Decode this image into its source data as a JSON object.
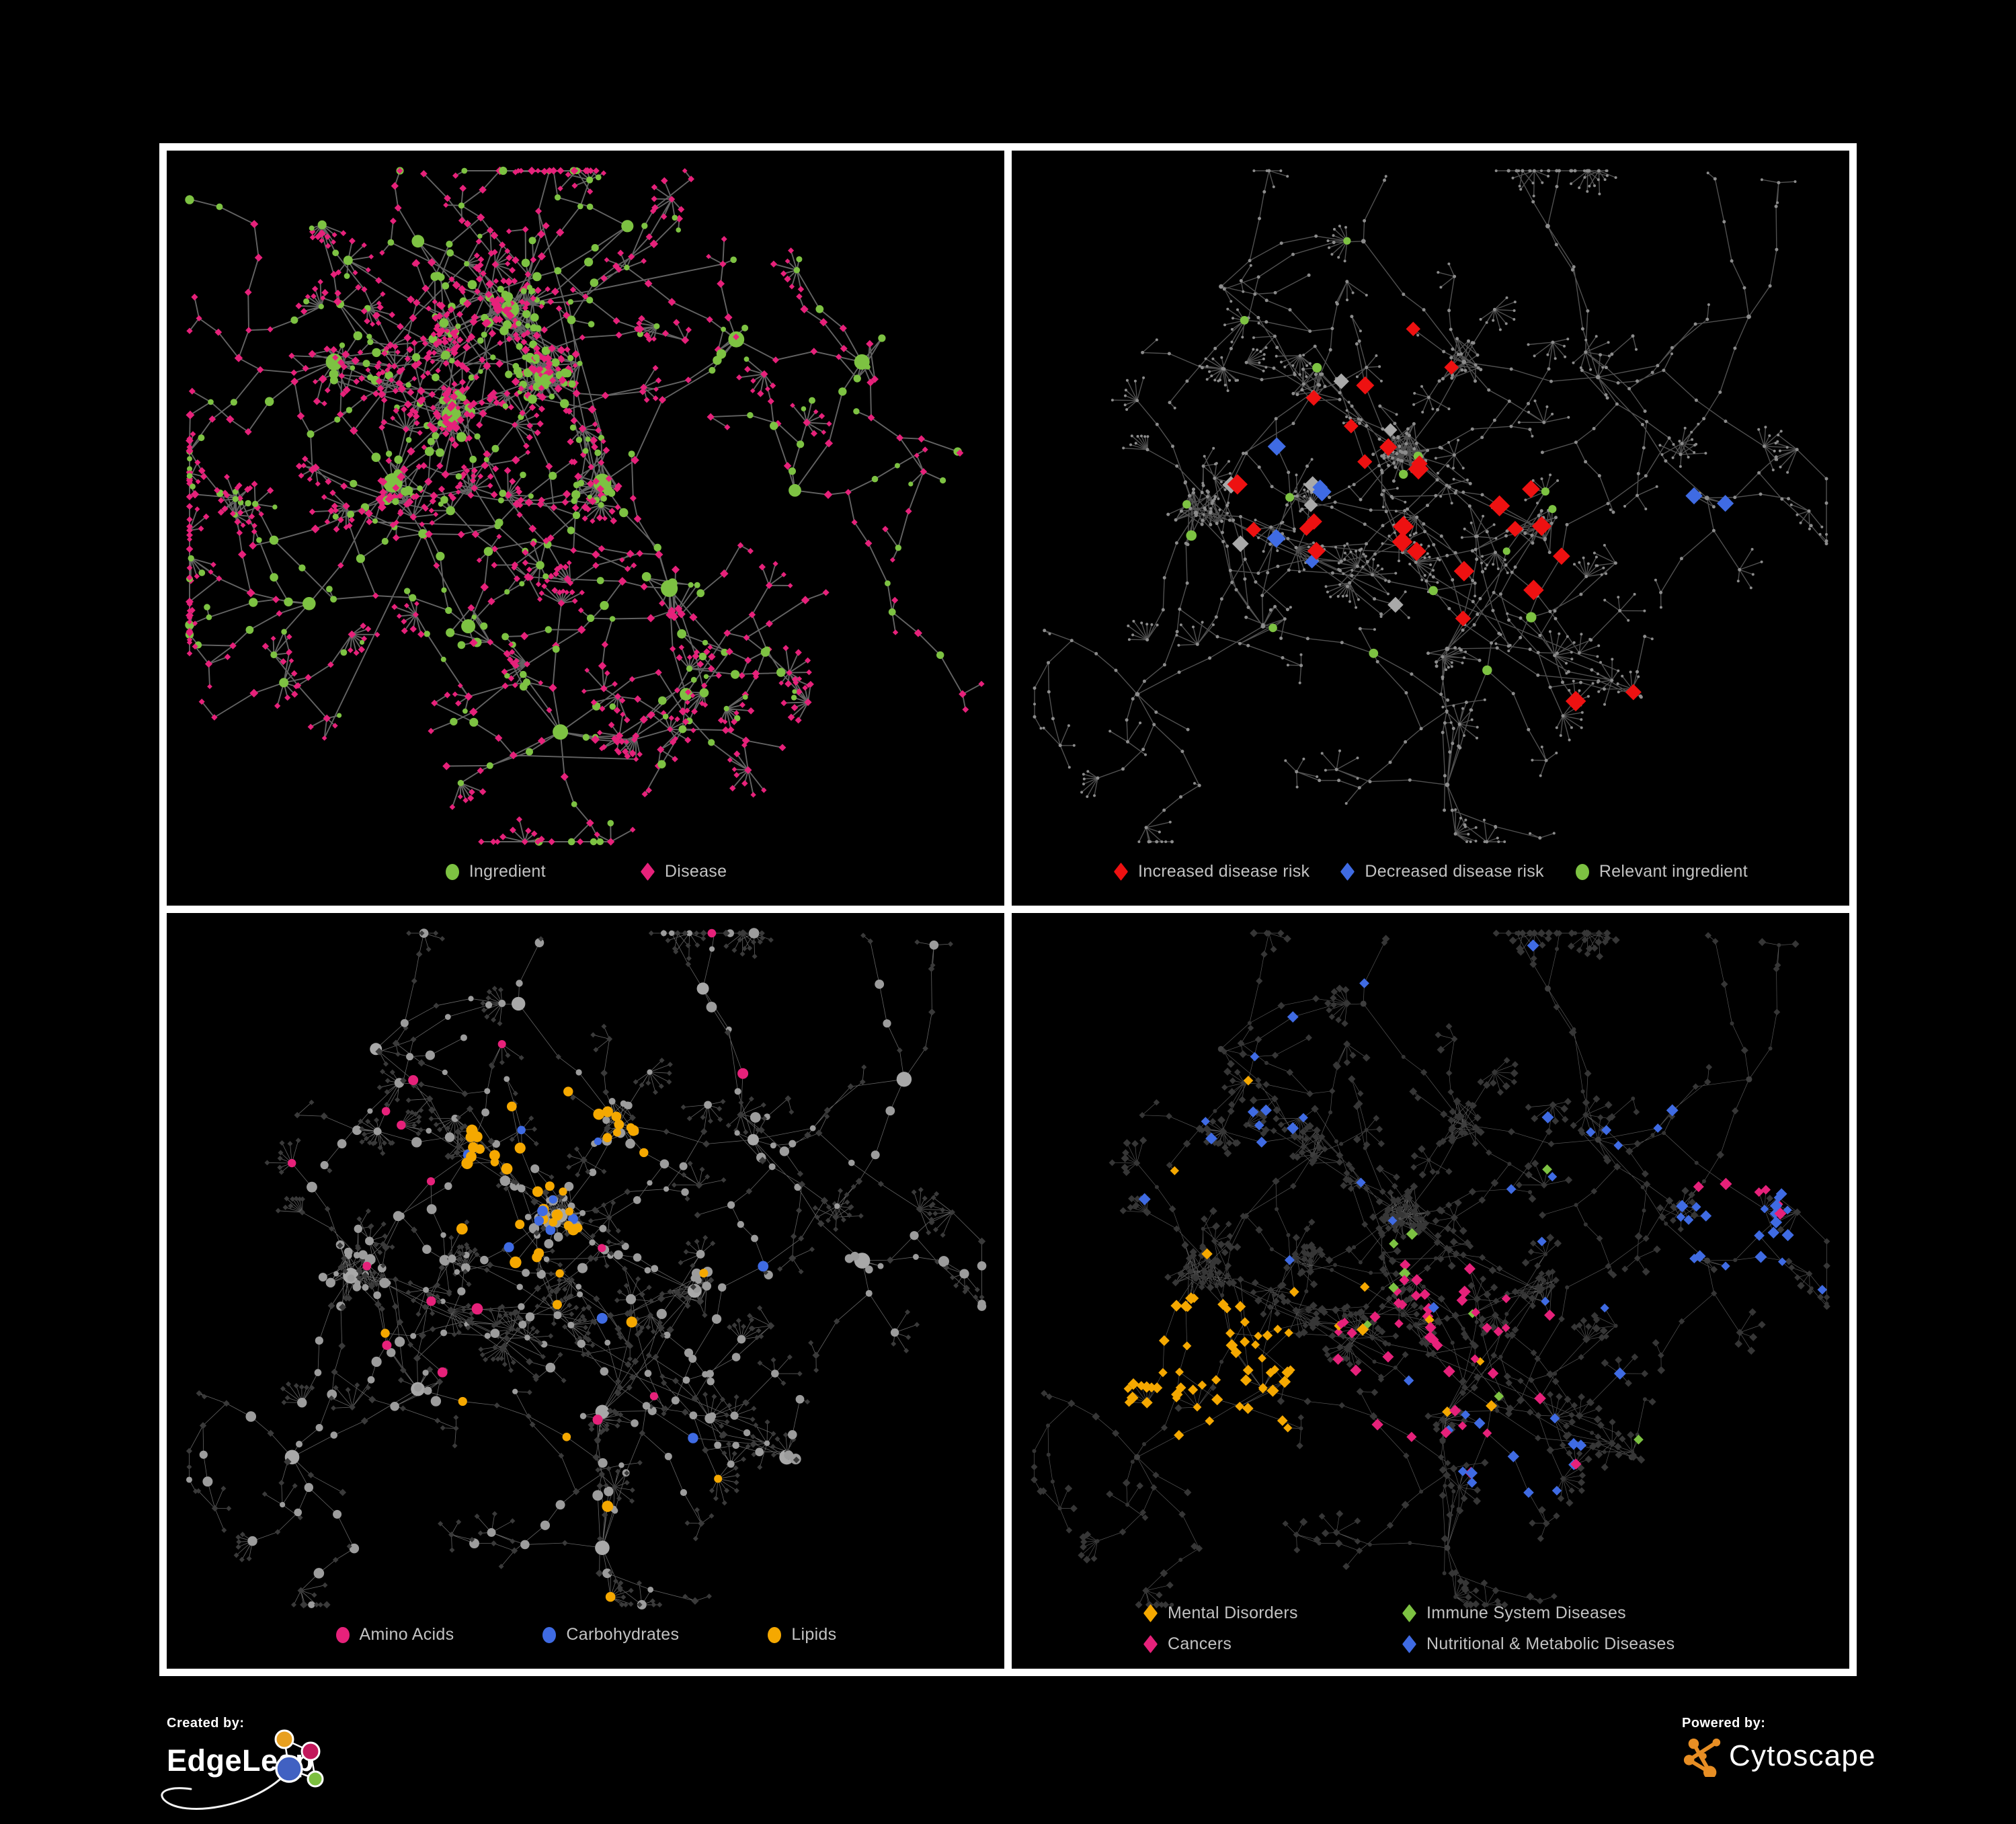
{
  "page": {
    "background": "#000000",
    "frame_color": "#FFFFFF",
    "legend_text_color": "#C2C2C2"
  },
  "branding": {
    "created_by": {
      "label": "Created by:",
      "brand": "EdgeLeap"
    },
    "powered_by": {
      "label": "Powered by:",
      "brand": "Cytoscape"
    }
  },
  "palette": {
    "green": "#7DC242",
    "pink": "#E6217A",
    "red": "#EE1111",
    "blue": "#3F6BE3",
    "silver": "#A9A9A9",
    "orange": "#F5A800",
    "dark_node": "#3A3A3A",
    "gray_node": "#9C9C9C",
    "edgeleap_blue": "#4161C2",
    "edgeleap_orange": "#E8A020",
    "edgeleap_crimson": "#C2185B",
    "edgeleap_green": "#7CBF3F",
    "cytoscape_orange": "#E78E24"
  },
  "networks": {
    "ingredient_disease": {
      "seed": 5,
      "fan": 0.6,
      "cross": 14,
      "blob_radius": 55,
      "hubs": [
        [
          0.34,
          0.35,
          38,
          5,
          7
        ],
        [
          0.45,
          0.3,
          40,
          5,
          7
        ],
        [
          0.41,
          0.21,
          28,
          4,
          6
        ],
        [
          0.27,
          0.44,
          20,
          4,
          6
        ],
        [
          0.52,
          0.44,
          24,
          4,
          6
        ],
        [
          0.2,
          0.28,
          10,
          3,
          5
        ],
        [
          0.6,
          0.58,
          10,
          3,
          5
        ],
        [
          0.36,
          0.63,
          8,
          3,
          5
        ],
        [
          0.47,
          0.77,
          0,
          6,
          9
        ],
        [
          0.68,
          0.25,
          6,
          3,
          5
        ],
        [
          0.83,
          0.28,
          6,
          2,
          4
        ],
        [
          0.3,
          0.12,
          0,
          2,
          4
        ],
        [
          0.55,
          0.1,
          0,
          2,
          4
        ],
        [
          0.17,
          0.6,
          0,
          2,
          4
        ],
        [
          0.62,
          0.72,
          0,
          2,
          4
        ],
        [
          0.75,
          0.45,
          0,
          2,
          4
        ]
      ]
    },
    "base": {
      "seed": 11,
      "fan": 0.55,
      "cross": 12,
      "blob_radius": 52,
      "hubs": [
        [
          0.47,
          0.4,
          46,
          6,
          8
        ],
        [
          0.36,
          0.32,
          16,
          4,
          6
        ],
        [
          0.54,
          0.28,
          20,
          4,
          6
        ],
        [
          0.22,
          0.48,
          26,
          5,
          7
        ],
        [
          0.63,
          0.5,
          16,
          4,
          6
        ],
        [
          0.3,
          0.63,
          8,
          3,
          5
        ],
        [
          0.52,
          0.66,
          6,
          3,
          5
        ],
        [
          0.7,
          0.3,
          4,
          3,
          5
        ],
        [
          0.83,
          0.46,
          4,
          2,
          4
        ],
        [
          0.42,
          0.12,
          0,
          2,
          4
        ],
        [
          0.25,
          0.18,
          0,
          2,
          4
        ],
        [
          0.64,
          0.1,
          0,
          2,
          4
        ],
        [
          0.88,
          0.22,
          0,
          2,
          3
        ],
        [
          0.15,
          0.72,
          0,
          2,
          4
        ],
        [
          0.52,
          0.84,
          0,
          6,
          9
        ],
        [
          0.74,
          0.72,
          4,
          2,
          4
        ]
      ]
    }
  },
  "panels": [
    {
      "name": "ingredient-disease",
      "graph": "ingredient_disease",
      "style": {
        "seed": 21,
        "mode": "two-tone",
        "edge": "#6E6E6E",
        "edge_w": 1.9,
        "edge_o": 0.9,
        "green": "#7DC242",
        "pink": "#E6217A"
      },
      "legend": {
        "gap": 140,
        "items": [
          {
            "shape": "circle",
            "color": "#7DC242",
            "label": "Ingredient"
          },
          {
            "shape": "diamond",
            "color": "#E6217A",
            "label": "Disease"
          }
        ]
      }
    },
    {
      "name": "disease-risk",
      "graph": "base",
      "style": {
        "seed": 22,
        "mode": "highlight",
        "edge": "#5E5E5E",
        "edge_w": 1.4,
        "edge_o": 0.85,
        "base_node": "#8C8C8C",
        "highlights": [
          {
            "shape": "diamond",
            "color": "#EE1111",
            "size": 12,
            "groups": [
              [
                20,
                0.47,
                0.43,
                0.22
              ],
              [
                4,
                0.62,
                0.5,
                0.1
              ],
              [
                2,
                0.74,
                0.8,
                0.1
              ],
              [
                1,
                0.33,
                0.37,
                0.06
              ]
            ]
          },
          {
            "shape": "diamond",
            "color": "#3F6BE3",
            "size": 11,
            "groups": [
              [
                5,
                0.31,
                0.47,
                0.1
              ],
              [
                2,
                0.845,
                0.44,
                0.035
              ]
            ]
          },
          {
            "shape": "diamond",
            "color": "#A9A9A9",
            "size": 11,
            "groups": [
              [
                7,
                0.46,
                0.5,
                0.22
              ]
            ]
          },
          {
            "shape": "circle",
            "color": "#7DC242",
            "size": 6.5,
            "groups": [
              [
                16,
                0.45,
                0.42,
                0.28
              ]
            ]
          }
        ]
      },
      "legend": {
        "gap": 45,
        "items": [
          {
            "shape": "diamond",
            "color": "#EE1111",
            "label": "Increased disease risk"
          },
          {
            "shape": "diamond",
            "color": "#3F6BE3",
            "label": "Decreased disease risk"
          },
          {
            "shape": "circle",
            "color": "#7DC242",
            "label": "Relevant ingredient"
          }
        ]
      }
    },
    {
      "name": "macronutrients",
      "graph": "base",
      "style": {
        "seed": 23,
        "mode": "compound",
        "edge": "#909090",
        "edge_w": 0.8,
        "edge_o": 0.7,
        "dark": "#3A3A3A",
        "gray": "#9C9C9C",
        "highlights": [
          {
            "shape": "circle",
            "color": "#F5A800",
            "size": 7,
            "groups": [
              [
                36,
                0.46,
                0.36,
                0.12
              ],
              [
                12,
                0.52,
                0.6,
                0.32
              ]
            ]
          },
          {
            "shape": "circle",
            "color": "#3F6BE3",
            "size": 6.5,
            "groups": [
              [
                9,
                0.45,
                0.35,
                0.1
              ],
              [
                3,
                0.55,
                0.62,
                0.28
              ]
            ]
          },
          {
            "shape": "circle",
            "color": "#E6217A",
            "size": 7,
            "groups": [
              [
                16,
                0.48,
                0.5,
                0.46
              ]
            ]
          }
        ]
      },
      "legend": {
        "gap": 130,
        "items": [
          {
            "shape": "circle",
            "color": "#E6217A",
            "label": "Amino Acids"
          },
          {
            "shape": "circle",
            "color": "#3F6BE3",
            "label": "Carbohydrates"
          },
          {
            "shape": "circle",
            "color": "#F5A800",
            "label": "Lipids"
          }
        ]
      }
    },
    {
      "name": "disease-classes",
      "graph": "base",
      "style": {
        "seed": 24,
        "mode": "dark-diamond",
        "edge": "#7A7A7A",
        "edge_w": 0.7,
        "edge_o": 0.7,
        "dark": "#363636",
        "highlights": [
          {
            "shape": "diamond",
            "color": "#F5A800",
            "size": 7,
            "groups": [
              [
                55,
                0.24,
                0.62,
                0.11
              ],
              [
                12,
                0.38,
                0.48,
                0.28
              ]
            ]
          },
          {
            "shape": "diamond",
            "color": "#E6217A",
            "size": 7,
            "groups": [
              [
                38,
                0.5,
                0.58,
                0.12
              ],
              [
                6,
                0.88,
                0.33,
                0.08
              ],
              [
                6,
                0.55,
                0.78,
                0.25
              ]
            ]
          },
          {
            "shape": "diamond",
            "color": "#3F6BE3",
            "size": 7,
            "groups": [
              [
                12,
                0.6,
                0.7,
                0.08
              ],
              [
                20,
                0.74,
                0.36,
                0.18
              ],
              [
                10,
                0.29,
                0.13,
                0.16
              ],
              [
                8,
                0.89,
                0.4,
                0.07
              ],
              [
                15,
                0.52,
                0.45,
                0.48
              ]
            ]
          },
          {
            "shape": "diamond",
            "color": "#7DC242",
            "size": 7,
            "groups": [
              [
                9,
                0.46,
                0.48,
                0.36
              ]
            ]
          }
        ]
      },
      "legend": {
        "columns": 2,
        "items": [
          {
            "shape": "diamond",
            "color": "#F5A800",
            "label": "Mental Disorders"
          },
          {
            "shape": "diamond",
            "color": "#7DC242",
            "label": "Immune System Diseases"
          },
          {
            "shape": "diamond",
            "color": "#E6217A",
            "label": "Cancers"
          },
          {
            "shape": "diamond",
            "color": "#3F6BE3",
            "label": "Nutritional & Metabolic Diseases"
          }
        ]
      }
    }
  ]
}
